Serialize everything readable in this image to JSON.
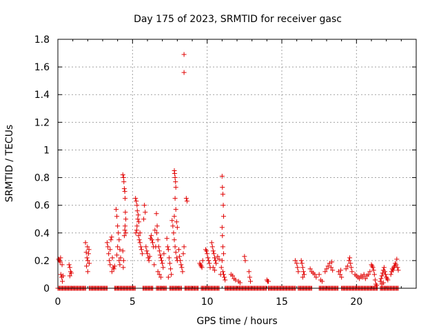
{
  "chart_data": {
    "type": "scatter",
    "title": "Day 175 of 2023, SRMTID for receiver gasc",
    "xlabel": "GPS time / hours",
    "ylabel": "SRMTID / TECUs",
    "xlim": [
      0,
      24
    ],
    "ylim": [
      0,
      1.8
    ],
    "xticks": [
      0,
      5,
      10,
      15,
      20
    ],
    "yticks": [
      0,
      0.2,
      0.4,
      0.6,
      0.8,
      1,
      1.2,
      1.4,
      1.6,
      1.8
    ],
    "ytick_labels": [
      "0",
      "0.2",
      "0.4",
      "0.6",
      "0.8",
      "1",
      "1.2",
      "1.4",
      "1.6",
      "1.8"
    ],
    "xtick_labels": [
      "0",
      "5",
      "10",
      "15",
      "20"
    ],
    "grid": true,
    "marker": "+",
    "color": "#e00000",
    "series": [
      {
        "name": "SRMTID",
        "points": [
          [
            0.05,
            0.21
          ],
          [
            0.1,
            0.2
          ],
          [
            0.15,
            0.19
          ],
          [
            0.2,
            0.1
          ],
          [
            0.25,
            0.08
          ],
          [
            0.3,
            0.05
          ],
          [
            0.35,
            0.09
          ],
          [
            0.18,
            0.22
          ],
          [
            0.28,
            0.17
          ],
          [
            0.75,
            0.17
          ],
          [
            0.8,
            0.15
          ],
          [
            0.85,
            0.12
          ],
          [
            0.8,
            0.09
          ],
          [
            0.9,
            0.11
          ],
          [
            1.85,
            0.33
          ],
          [
            1.9,
            0.26
          ],
          [
            1.95,
            0.22
          ],
          [
            2.0,
            0.2
          ],
          [
            2.05,
            0.25
          ],
          [
            2.1,
            0.18
          ],
          [
            1.92,
            0.16
          ],
          [
            2.0,
            0.12
          ],
          [
            2.08,
            0.28
          ],
          [
            1.98,
            0.3
          ],
          [
            3.3,
            0.33
          ],
          [
            3.35,
            0.3
          ],
          [
            3.4,
            0.25
          ],
          [
            3.45,
            0.2
          ],
          [
            3.5,
            0.17
          ],
          [
            3.55,
            0.35
          ],
          [
            3.6,
            0.37
          ],
          [
            3.65,
            0.22
          ],
          [
            3.7,
            0.15
          ],
          [
            3.75,
            0.14
          ],
          [
            3.8,
            0.16
          ],
          [
            3.5,
            0.28
          ],
          [
            3.62,
            0.12
          ],
          [
            3.9,
            0.57
          ],
          [
            3.95,
            0.52
          ],
          [
            4.0,
            0.45
          ],
          [
            4.05,
            0.4
          ],
          [
            4.1,
            0.35
          ],
          [
            4.15,
            0.28
          ],
          [
            4.2,
            0.22
          ],
          [
            4.0,
            0.3
          ],
          [
            4.1,
            0.2
          ],
          [
            4.15,
            0.17
          ],
          [
            3.95,
            0.24
          ],
          [
            4.35,
            0.82
          ],
          [
            4.4,
            0.8
          ],
          [
            4.42,
            0.77
          ],
          [
            4.45,
            0.72
          ],
          [
            4.48,
            0.7
          ],
          [
            4.5,
            0.65
          ],
          [
            4.52,
            0.55
          ],
          [
            4.55,
            0.5
          ],
          [
            4.5,
            0.45
          ],
          [
            4.48,
            0.42
          ],
          [
            4.45,
            0.38
          ],
          [
            4.55,
            0.4
          ],
          [
            4.35,
            0.27
          ],
          [
            4.4,
            0.2
          ],
          [
            4.38,
            0.15
          ],
          [
            5.2,
            0.65
          ],
          [
            5.25,
            0.63
          ],
          [
            5.3,
            0.6
          ],
          [
            5.32,
            0.56
          ],
          [
            5.35,
            0.5
          ],
          [
            5.3,
            0.45
          ],
          [
            5.28,
            0.42
          ],
          [
            5.22,
            0.4
          ],
          [
            5.4,
            0.38
          ],
          [
            5.45,
            0.35
          ],
          [
            5.5,
            0.33
          ],
          [
            5.55,
            0.3
          ],
          [
            5.6,
            0.28
          ],
          [
            5.65,
            0.25
          ],
          [
            5.5,
            0.4
          ],
          [
            5.42,
            0.48
          ],
          [
            5.38,
            0.53
          ],
          [
            5.8,
            0.6
          ],
          [
            5.85,
            0.55
          ],
          [
            5.75,
            0.5
          ],
          [
            5.9,
            0.3
          ],
          [
            5.95,
            0.27
          ],
          [
            6.0,
            0.25
          ],
          [
            6.05,
            0.22
          ],
          [
            6.1,
            0.2
          ],
          [
            6.15,
            0.23
          ],
          [
            6.2,
            0.36
          ],
          [
            6.25,
            0.38
          ],
          [
            6.3,
            0.35
          ],
          [
            6.35,
            0.33
          ],
          [
            6.4,
            0.3
          ],
          [
            6.5,
            0.42
          ],
          [
            6.55,
            0.3
          ],
          [
            6.45,
            0.17
          ],
          [
            6.6,
            0.54
          ],
          [
            6.65,
            0.45
          ],
          [
            6.62,
            0.4
          ],
          [
            6.7,
            0.35
          ],
          [
            6.75,
            0.3
          ],
          [
            6.8,
            0.27
          ],
          [
            6.85,
            0.24
          ],
          [
            6.9,
            0.22
          ],
          [
            6.95,
            0.2
          ],
          [
            7.0,
            0.18
          ],
          [
            7.05,
            0.15
          ],
          [
            6.7,
            0.12
          ],
          [
            6.8,
            0.1
          ],
          [
            6.9,
            0.08
          ],
          [
            7.1,
            0.25
          ],
          [
            7.3,
            0.36
          ],
          [
            7.35,
            0.3
          ],
          [
            7.4,
            0.28
          ],
          [
            7.45,
            0.22
          ],
          [
            7.5,
            0.18
          ],
          [
            7.55,
            0.14
          ],
          [
            7.6,
            0.1
          ],
          [
            7.4,
            0.08
          ],
          [
            7.65,
            0.49
          ],
          [
            7.7,
            0.45
          ],
          [
            7.75,
            0.4
          ],
          [
            7.8,
            0.35
          ],
          [
            7.85,
            0.3
          ],
          [
            7.9,
            0.26
          ],
          [
            7.95,
            0.22
          ],
          [
            8.0,
            0.2
          ],
          [
            7.8,
            0.85
          ],
          [
            7.82,
            0.83
          ],
          [
            7.85,
            0.8
          ],
          [
            7.88,
            0.77
          ],
          [
            7.9,
            0.73
          ],
          [
            7.85,
            0.65
          ],
          [
            7.9,
            0.57
          ],
          [
            7.8,
            0.52
          ],
          [
            7.95,
            0.48
          ],
          [
            8.0,
            0.44
          ],
          [
            8.1,
            0.28
          ],
          [
            8.15,
            0.23
          ],
          [
            8.2,
            0.2
          ],
          [
            8.25,
            0.17
          ],
          [
            8.3,
            0.15
          ],
          [
            8.35,
            0.12
          ],
          [
            8.4,
            0.25
          ],
          [
            8.45,
            0.3
          ],
          [
            8.45,
            1.69
          ],
          [
            8.45,
            1.56
          ],
          [
            8.6,
            0.65
          ],
          [
            8.65,
            0.63
          ],
          [
            9.5,
            0.18
          ],
          [
            9.55,
            0.17
          ],
          [
            9.6,
            0.16
          ],
          [
            9.65,
            0.15
          ],
          [
            9.7,
            0.2
          ],
          [
            9.9,
            0.28
          ],
          [
            9.95,
            0.27
          ],
          [
            10.0,
            0.25
          ],
          [
            10.05,
            0.22
          ],
          [
            10.1,
            0.2
          ],
          [
            10.15,
            0.18
          ],
          [
            10.2,
            0.15
          ],
          [
            10.3,
            0.33
          ],
          [
            10.35,
            0.3
          ],
          [
            10.4,
            0.27
          ],
          [
            10.45,
            0.25
          ],
          [
            10.5,
            0.22
          ],
          [
            10.55,
            0.2
          ],
          [
            10.6,
            0.18
          ],
          [
            10.4,
            0.15
          ],
          [
            10.5,
            0.13
          ],
          [
            10.7,
            0.23
          ],
          [
            10.8,
            0.21
          ],
          [
            11.0,
            0.81
          ],
          [
            11.02,
            0.73
          ],
          [
            11.05,
            0.68
          ],
          [
            11.08,
            0.6
          ],
          [
            11.1,
            0.52
          ],
          [
            11.0,
            0.44
          ],
          [
            11.02,
            0.38
          ],
          [
            11.05,
            0.3
          ],
          [
            11.1,
            0.25
          ],
          [
            11.0,
            0.2
          ],
          [
            10.95,
            0.15
          ],
          [
            11.05,
            0.12
          ],
          [
            11.1,
            0.1
          ],
          [
            11.15,
            0.08
          ],
          [
            11.2,
            0.06
          ],
          [
            10.9,
            0.1
          ],
          [
            11.6,
            0.1
          ],
          [
            11.7,
            0.09
          ],
          [
            11.8,
            0.07
          ],
          [
            11.9,
            0.06
          ],
          [
            12.1,
            0.05
          ],
          [
            12.2,
            0.04
          ],
          [
            12.5,
            0.23
          ],
          [
            12.55,
            0.2
          ],
          [
            12.8,
            0.12
          ],
          [
            12.85,
            0.08
          ],
          [
            12.9,
            0.05
          ],
          [
            14.0,
            0.06
          ],
          [
            14.05,
            0.05
          ],
          [
            14.1,
            0.05
          ],
          [
            15.9,
            0.2
          ],
          [
            16.0,
            0.18
          ],
          [
            16.05,
            0.15
          ],
          [
            16.1,
            0.12
          ],
          [
            16.3,
            0.2
          ],
          [
            16.35,
            0.18
          ],
          [
            16.4,
            0.15
          ],
          [
            16.45,
            0.12
          ],
          [
            16.5,
            0.1
          ],
          [
            16.4,
            0.08
          ],
          [
            16.9,
            0.14
          ],
          [
            17.0,
            0.12
          ],
          [
            17.1,
            0.11
          ],
          [
            17.2,
            0.1
          ],
          [
            17.3,
            0.08
          ],
          [
            17.5,
            0.1
          ],
          [
            17.6,
            0.06
          ],
          [
            17.7,
            0.05
          ],
          [
            17.9,
            0.12
          ],
          [
            18.0,
            0.14
          ],
          [
            18.1,
            0.16
          ],
          [
            18.2,
            0.18
          ],
          [
            18.3,
            0.15
          ],
          [
            18.4,
            0.13
          ],
          [
            18.35,
            0.19
          ],
          [
            18.8,
            0.12
          ],
          [
            18.9,
            0.1
          ],
          [
            19.0,
            0.08
          ],
          [
            18.95,
            0.13
          ],
          [
            19.3,
            0.14
          ],
          [
            19.4,
            0.16
          ],
          [
            19.5,
            0.2
          ],
          [
            19.55,
            0.22
          ],
          [
            19.6,
            0.18
          ],
          [
            19.65,
            0.15
          ],
          [
            19.7,
            0.12
          ],
          [
            19.9,
            0.1
          ],
          [
            20.0,
            0.09
          ],
          [
            20.1,
            0.08
          ],
          [
            20.2,
            0.07
          ],
          [
            20.3,
            0.09
          ],
          [
            20.4,
            0.08
          ],
          [
            20.5,
            0.1
          ],
          [
            20.6,
            0.07
          ],
          [
            20.7,
            0.09
          ],
          [
            20.8,
            0.1
          ],
          [
            20.9,
            0.12
          ],
          [
            21.0,
            0.17
          ],
          [
            21.05,
            0.16
          ],
          [
            21.1,
            0.15
          ],
          [
            21.15,
            0.13
          ],
          [
            21.2,
            0.1
          ],
          [
            21.25,
            0.06
          ],
          [
            21.3,
            0.03
          ],
          [
            21.35,
            0.02
          ],
          [
            21.6,
            0.05
          ],
          [
            21.65,
            0.07
          ],
          [
            21.7,
            0.09
          ],
          [
            21.75,
            0.11
          ],
          [
            21.8,
            0.13
          ],
          [
            21.85,
            0.15
          ],
          [
            21.9,
            0.12
          ],
          [
            21.95,
            0.1
          ],
          [
            22.0,
            0.08
          ],
          [
            22.05,
            0.07
          ],
          [
            22.1,
            0.06
          ],
          [
            21.7,
            0.03
          ],
          [
            21.8,
            0.04
          ],
          [
            22.3,
            0.1
          ],
          [
            22.35,
            0.12
          ],
          [
            22.4,
            0.14
          ],
          [
            22.45,
            0.13
          ],
          [
            22.5,
            0.15
          ],
          [
            22.55,
            0.16
          ],
          [
            22.6,
            0.18
          ],
          [
            22.65,
            0.17
          ],
          [
            22.7,
            0.21
          ],
          [
            22.75,
            0.15
          ],
          [
            22.8,
            0.13
          ]
        ],
        "zero_runs": [
          [
            0.0,
            1.9
          ],
          [
            2.1,
            3.3
          ],
          [
            3.8,
            5.2
          ],
          [
            5.7,
            6.4
          ],
          [
            6.6,
            7.3
          ],
          [
            7.5,
            8.3
          ],
          [
            8.5,
            9.4
          ],
          [
            9.6,
            10.8
          ],
          [
            11.2,
            14.0
          ],
          [
            14.1,
            15.9
          ],
          [
            16.1,
            17.0
          ],
          [
            17.5,
            18.8
          ],
          [
            19.0,
            21.4
          ],
          [
            21.6,
            22.8
          ]
        ]
      }
    ]
  }
}
